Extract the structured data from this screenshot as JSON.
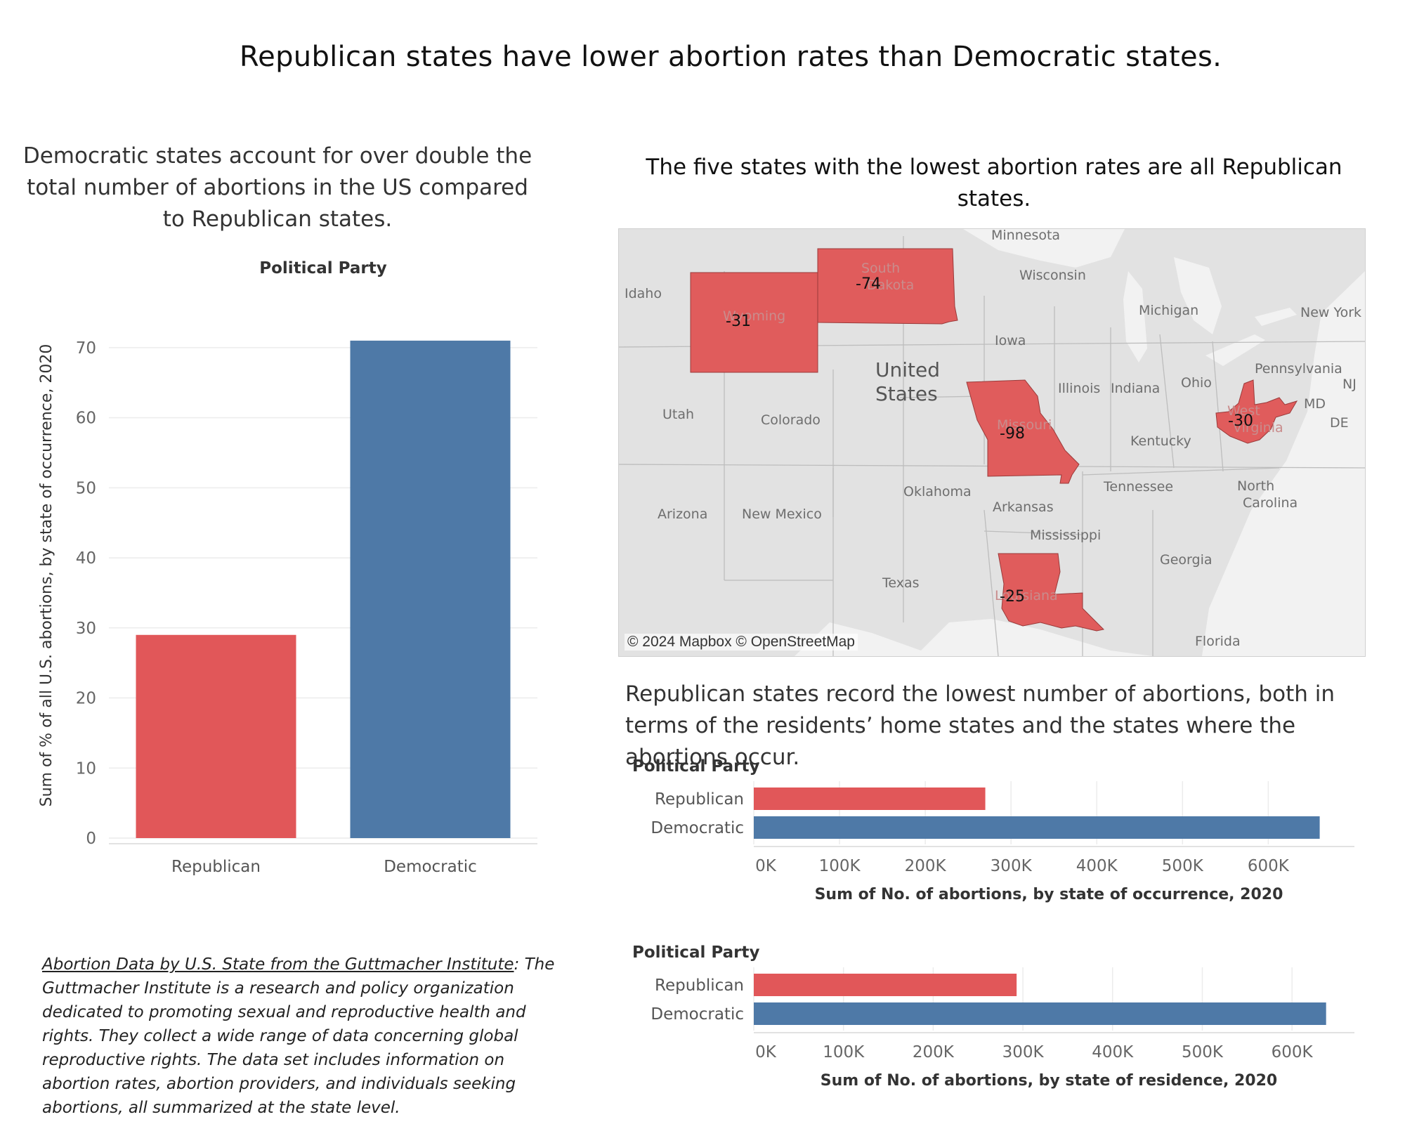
{
  "header": {
    "title": "Republican states have lower abortion rates than Democratic states."
  },
  "left_chart": {
    "title": "Democratic states account for over double the total number of abortions in the US compared to Republican states."
  },
  "map": {
    "title": "The five states with the lowest abortion rates are all Republican states.",
    "credit": "© 2024 Mapbox © OpenStreetMap",
    "highlight_color": "#e05c5c",
    "base_color": "#e2e2e2",
    "state_labels": [
      "Minnesota",
      "Idaho",
      "Wisconsin",
      "Michigan",
      "New York",
      "Iowa",
      "Pennsylvania",
      "NJ",
      "Utah",
      "Colorado",
      "Illinois",
      "Indiana",
      "Ohio",
      "MD",
      "DE",
      "Kentucky",
      "Tennessee",
      "North Carolina",
      "Oklahoma",
      "Arizona",
      "New Mexico",
      "Arkansas",
      "Mississippi",
      "Georgia",
      "Texas",
      "Florida",
      "Wyoming",
      "South Dakota",
      "Missouri",
      "West Virginia",
      "Louisiana"
    ],
    "country_label": [
      "United",
      "States"
    ],
    "highlighted_states": [
      {
        "state": "Wyoming",
        "value": "-31"
      },
      {
        "state": "South Dakota",
        "value": "-74"
      },
      {
        "state": "Missouri",
        "value": "-98"
      },
      {
        "state": "West Virginia",
        "value": "-30"
      },
      {
        "state": "Louisiana",
        "value": "-25"
      }
    ]
  },
  "right_bars": {
    "title": "Republican states record the lowest number of abortions, both in terms of the residents’ home states and the states where the abortions occur."
  },
  "source": {
    "link_text": "Abortion Data by U.S. State from the Guttmacher Institute",
    "colon": ":",
    "description": "The Guttmacher Institute is a research and policy organization dedicated to promoting sexual and reproductive health and rights. They collect a wide range of data concerning global reproductive rights. The data set includes information on abortion rates, abortion providers, and individuals seeking abortions, all summarized at the state level."
  },
  "colors": {
    "republican": "#e15759",
    "democratic": "#4e79a7"
  },
  "chart_data": [
    {
      "type": "bar",
      "title": "Political Party",
      "categories": [
        "Republican",
        "Democratic"
      ],
      "values": [
        29,
        71
      ],
      "colors": [
        "#e15759",
        "#4e79a7"
      ],
      "ylabel": "Sum of % of all U.S. abortions, by state of occurrence, 2020",
      "ylim": [
        0,
        75
      ],
      "yticks": [
        0,
        10,
        20,
        30,
        40,
        50,
        60,
        70
      ]
    },
    {
      "type": "bar",
      "orientation": "horizontal",
      "legend_title": "Political Party",
      "categories": [
        "Republican",
        "Democratic"
      ],
      "values": [
        270000,
        660000
      ],
      "colors": [
        "#e15759",
        "#4e79a7"
      ],
      "xlabel": "Sum of No. of abortions, by state of occurrence, 2020",
      "xlim": [
        0,
        680000
      ],
      "xticks": [
        0,
        100000,
        200000,
        300000,
        400000,
        500000,
        600000
      ],
      "xtick_labels": [
        "0K",
        "100K",
        "200K",
        "300K",
        "400K",
        "500K",
        "600K"
      ]
    },
    {
      "type": "bar",
      "orientation": "horizontal",
      "legend_title": "Political Party",
      "categories": [
        "Republican",
        "Democratic"
      ],
      "values": [
        293000,
        638000
      ],
      "colors": [
        "#e15759",
        "#4e79a7"
      ],
      "xlabel": "Sum of No. of abortions, by state of residence, 2020",
      "xlim": [
        0,
        650000
      ],
      "xticks": [
        0,
        100000,
        200000,
        300000,
        400000,
        500000,
        600000
      ],
      "xtick_labels": [
        "0K",
        "100K",
        "200K",
        "300K",
        "400K",
        "500K",
        "600K"
      ]
    }
  ]
}
